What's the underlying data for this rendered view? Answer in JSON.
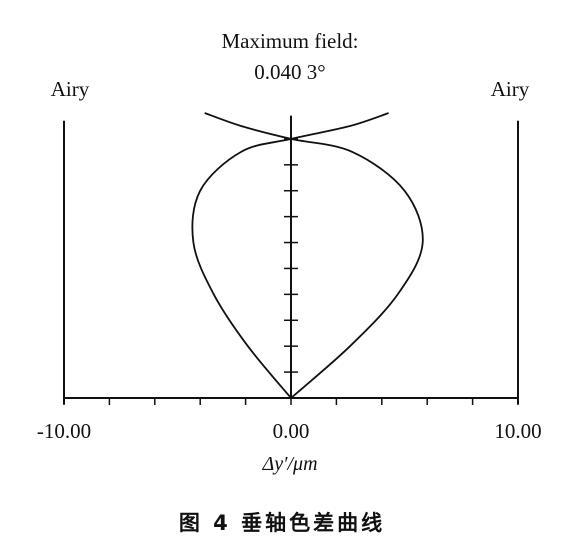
{
  "chart_data": {
    "type": "line",
    "title": "Maximum field:",
    "subtitle": "0.040 3°",
    "xlabel": "Δy′/μm",
    "ylabel": "",
    "xlim": [
      -10,
      10
    ],
    "ylim": [
      0,
      1.1
    ],
    "x_ticks": [
      "-10.00",
      "0.00",
      "10.00"
    ],
    "airy_left_label": "Airy",
    "airy_right_label": "Airy",
    "airy_left_value": -10.0,
    "airy_right_value": 10.0,
    "grid": false,
    "series": [
      {
        "points": [
          [
            0.0,
            0.0
          ],
          [
            -1.9,
            0.2
          ],
          [
            -3.4,
            0.4
          ],
          [
            -4.3,
            0.6
          ],
          [
            -4.0,
            0.8
          ],
          [
            -2.2,
            0.95
          ],
          [
            0.0,
            1.0
          ],
          [
            2.6,
            1.05
          ],
          [
            4.3,
            1.1
          ]
        ]
      },
      {
        "points": [
          [
            0.0,
            0.0
          ],
          [
            2.6,
            0.2
          ],
          [
            4.7,
            0.4
          ],
          [
            5.8,
            0.6
          ],
          [
            5.0,
            0.8
          ],
          [
            2.7,
            0.95
          ],
          [
            0.0,
            1.0
          ],
          [
            -2.2,
            1.05
          ],
          [
            -3.8,
            1.1
          ]
        ]
      }
    ]
  },
  "caption": "图 4 垂轴色差曲线"
}
